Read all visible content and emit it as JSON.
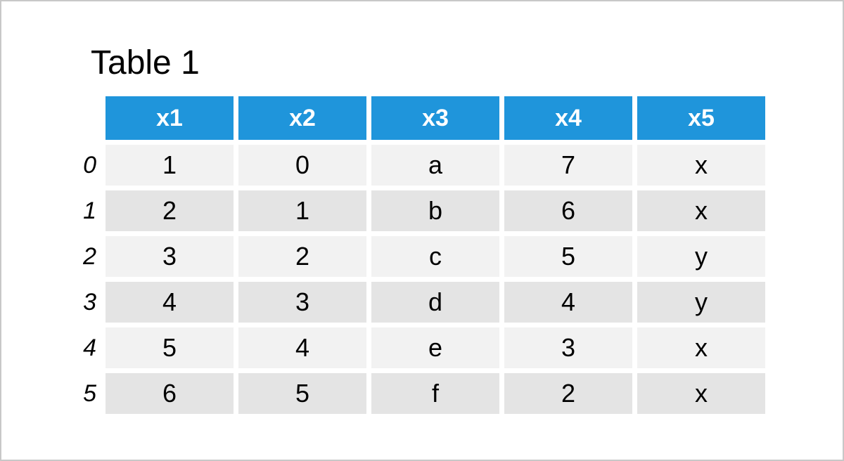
{
  "title": "Table 1",
  "chart_data": {
    "type": "table",
    "title": "Table 1",
    "columns": [
      "x1",
      "x2",
      "x3",
      "x4",
      "x5"
    ],
    "index": [
      "0",
      "1",
      "2",
      "3",
      "4",
      "5"
    ],
    "rows": [
      [
        "1",
        "0",
        "a",
        "7",
        "x"
      ],
      [
        "2",
        "1",
        "b",
        "6",
        "x"
      ],
      [
        "3",
        "2",
        "c",
        "5",
        "y"
      ],
      [
        "4",
        "3",
        "d",
        "4",
        "y"
      ],
      [
        "5",
        "4",
        "e",
        "3",
        "x"
      ],
      [
        "6",
        "5",
        "f",
        "2",
        "x"
      ]
    ],
    "layout": {
      "header_position": "top",
      "row_striping": "alternating",
      "index_style": "italic"
    }
  },
  "colors": {
    "header_bg": "#1f95db",
    "header_text": "#ffffff",
    "row_even_bg": "#f2f2f2",
    "row_odd_bg": "#e4e4e4",
    "frame_border": "#c8c8c8",
    "cell_text": "#000000"
  }
}
